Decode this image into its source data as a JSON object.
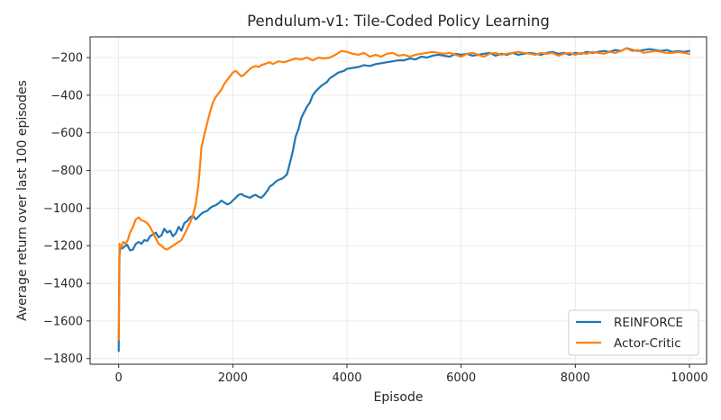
{
  "chart_data": {
    "type": "line",
    "title": "Pendulum-v1: Tile-Coded Policy Learning",
    "xlabel": "Episode",
    "ylabel": "Average return over last 100 episodes",
    "xlim": [
      -500,
      10300
    ],
    "ylim": [
      -1830,
      -90
    ],
    "xticks": [
      0,
      2000,
      4000,
      6000,
      8000,
      10000
    ],
    "yticks": [
      -1800,
      -1600,
      -1400,
      -1200,
      -1000,
      -800,
      -600,
      -400,
      -200
    ],
    "grid": true,
    "legend_position": "lower right",
    "series": [
      {
        "name": "REINFORCE",
        "color": "#1f77b4",
        "points": [
          [
            0,
            -1760
          ],
          [
            8,
            -1450
          ],
          [
            15,
            -1250
          ],
          [
            30,
            -1200
          ],
          [
            60,
            -1215
          ],
          [
            100,
            -1205
          ],
          [
            150,
            -1195
          ],
          [
            200,
            -1225
          ],
          [
            250,
            -1220
          ],
          [
            300,
            -1190
          ],
          [
            350,
            -1180
          ],
          [
            400,
            -1190
          ],
          [
            450,
            -1170
          ],
          [
            500,
            -1175
          ],
          [
            550,
            -1150
          ],
          [
            600,
            -1140
          ],
          [
            650,
            -1130
          ],
          [
            700,
            -1155
          ],
          [
            750,
            -1145
          ],
          [
            800,
            -1110
          ],
          [
            850,
            -1130
          ],
          [
            900,
            -1120
          ],
          [
            950,
            -1150
          ],
          [
            1000,
            -1135
          ],
          [
            1050,
            -1100
          ],
          [
            1100,
            -1120
          ],
          [
            1150,
            -1080
          ],
          [
            1200,
            -1070
          ],
          [
            1250,
            -1050
          ],
          [
            1300,
            -1040
          ],
          [
            1350,
            -1060
          ],
          [
            1400,
            -1045
          ],
          [
            1450,
            -1030
          ],
          [
            1500,
            -1020
          ],
          [
            1550,
            -1015
          ],
          [
            1600,
            -1000
          ],
          [
            1650,
            -990
          ],
          [
            1700,
            -985
          ],
          [
            1750,
            -975
          ],
          [
            1800,
            -960
          ],
          [
            1850,
            -970
          ],
          [
            1900,
            -980
          ],
          [
            1950,
            -975
          ],
          [
            2000,
            -960
          ],
          [
            2050,
            -945
          ],
          [
            2100,
            -930
          ],
          [
            2150,
            -925
          ],
          [
            2200,
            -935
          ],
          [
            2250,
            -940
          ],
          [
            2300,
            -945
          ],
          [
            2350,
            -935
          ],
          [
            2400,
            -930
          ],
          [
            2450,
            -940
          ],
          [
            2500,
            -945
          ],
          [
            2550,
            -930
          ],
          [
            2600,
            -910
          ],
          [
            2650,
            -885
          ],
          [
            2700,
            -875
          ],
          [
            2750,
            -860
          ],
          [
            2800,
            -850
          ],
          [
            2850,
            -845
          ],
          [
            2900,
            -835
          ],
          [
            2950,
            -820
          ],
          [
            3000,
            -760
          ],
          [
            3050,
            -700
          ],
          [
            3100,
            -620
          ],
          [
            3150,
            -580
          ],
          [
            3200,
            -520
          ],
          [
            3250,
            -490
          ],
          [
            3300,
            -460
          ],
          [
            3350,
            -440
          ],
          [
            3400,
            -400
          ],
          [
            3450,
            -380
          ],
          [
            3500,
            -365
          ],
          [
            3550,
            -350
          ],
          [
            3600,
            -340
          ],
          [
            3650,
            -330
          ],
          [
            3700,
            -310
          ],
          [
            3750,
            -300
          ],
          [
            3800,
            -290
          ],
          [
            3850,
            -280
          ],
          [
            3900,
            -275
          ],
          [
            3950,
            -270
          ],
          [
            4000,
            -260
          ],
          [
            4100,
            -255
          ],
          [
            4200,
            -250
          ],
          [
            4300,
            -240
          ],
          [
            4400,
            -245
          ],
          [
            4500,
            -235
          ],
          [
            4600,
            -230
          ],
          [
            4700,
            -225
          ],
          [
            4800,
            -220
          ],
          [
            4900,
            -215
          ],
          [
            5000,
            -215
          ],
          [
            5100,
            -205
          ],
          [
            5200,
            -210
          ],
          [
            5300,
            -195
          ],
          [
            5400,
            -200
          ],
          [
            5500,
            -190
          ],
          [
            5600,
            -185
          ],
          [
            5700,
            -190
          ],
          [
            5800,
            -195
          ],
          [
            5900,
            -180
          ],
          [
            6000,
            -185
          ],
          [
            6100,
            -180
          ],
          [
            6200,
            -190
          ],
          [
            6300,
            -185
          ],
          [
            6400,
            -180
          ],
          [
            6500,
            -175
          ],
          [
            6600,
            -190
          ],
          [
            6700,
            -180
          ],
          [
            6800,
            -185
          ],
          [
            6900,
            -175
          ],
          [
            7000,
            -185
          ],
          [
            7100,
            -180
          ],
          [
            7200,
            -175
          ],
          [
            7300,
            -180
          ],
          [
            7400,
            -185
          ],
          [
            7500,
            -175
          ],
          [
            7600,
            -170
          ],
          [
            7700,
            -180
          ],
          [
            7800,
            -175
          ],
          [
            7900,
            -185
          ],
          [
            8000,
            -175
          ],
          [
            8100,
            -180
          ],
          [
            8200,
            -170
          ],
          [
            8300,
            -175
          ],
          [
            8400,
            -170
          ],
          [
            8500,
            -165
          ],
          [
            8600,
            -170
          ],
          [
            8700,
            -160
          ],
          [
            8800,
            -165
          ],
          [
            8900,
            -150
          ],
          [
            9000,
            -160
          ],
          [
            9100,
            -165
          ],
          [
            9200,
            -160
          ],
          [
            9300,
            -155
          ],
          [
            9400,
            -160
          ],
          [
            9500,
            -165
          ],
          [
            9600,
            -160
          ],
          [
            9700,
            -170
          ],
          [
            9800,
            -165
          ],
          [
            9900,
            -170
          ],
          [
            10000,
            -165
          ]
        ]
      },
      {
        "name": "Actor-Critic",
        "color": "#ff7f0e",
        "points": [
          [
            0,
            -1700
          ],
          [
            8,
            -1400
          ],
          [
            15,
            -1190
          ],
          [
            40,
            -1210
          ],
          [
            80,
            -1180
          ],
          [
            120,
            -1190
          ],
          [
            160,
            -1170
          ],
          [
            200,
            -1130
          ],
          [
            250,
            -1100
          ],
          [
            300,
            -1060
          ],
          [
            350,
            -1050
          ],
          [
            400,
            -1065
          ],
          [
            450,
            -1070
          ],
          [
            500,
            -1080
          ],
          [
            550,
            -1100
          ],
          [
            600,
            -1130
          ],
          [
            650,
            -1160
          ],
          [
            700,
            -1190
          ],
          [
            750,
            -1200
          ],
          [
            800,
            -1215
          ],
          [
            850,
            -1220
          ],
          [
            900,
            -1210
          ],
          [
            950,
            -1200
          ],
          [
            1000,
            -1190
          ],
          [
            1050,
            -1180
          ],
          [
            1100,
            -1170
          ],
          [
            1150,
            -1140
          ],
          [
            1200,
            -1110
          ],
          [
            1250,
            -1080
          ],
          [
            1300,
            -1040
          ],
          [
            1350,
            -980
          ],
          [
            1400,
            -870
          ],
          [
            1430,
            -760
          ],
          [
            1450,
            -680
          ],
          [
            1500,
            -610
          ],
          [
            1550,
            -550
          ],
          [
            1600,
            -490
          ],
          [
            1650,
            -440
          ],
          [
            1700,
            -410
          ],
          [
            1750,
            -390
          ],
          [
            1800,
            -370
          ],
          [
            1850,
            -340
          ],
          [
            1900,
            -320
          ],
          [
            1950,
            -300
          ],
          [
            2000,
            -280
          ],
          [
            2050,
            -270
          ],
          [
            2100,
            -285
          ],
          [
            2150,
            -300
          ],
          [
            2200,
            -290
          ],
          [
            2250,
            -275
          ],
          [
            2300,
            -260
          ],
          [
            2350,
            -250
          ],
          [
            2400,
            -245
          ],
          [
            2450,
            -250
          ],
          [
            2500,
            -240
          ],
          [
            2550,
            -235
          ],
          [
            2600,
            -230
          ],
          [
            2650,
            -225
          ],
          [
            2700,
            -235
          ],
          [
            2800,
            -220
          ],
          [
            2900,
            -225
          ],
          [
            3000,
            -215
          ],
          [
            3100,
            -205
          ],
          [
            3200,
            -210
          ],
          [
            3300,
            -200
          ],
          [
            3400,
            -215
          ],
          [
            3500,
            -200
          ],
          [
            3600,
            -205
          ],
          [
            3700,
            -200
          ],
          [
            3800,
            -185
          ],
          [
            3900,
            -165
          ],
          [
            4000,
            -170
          ],
          [
            4100,
            -180
          ],
          [
            4200,
            -185
          ],
          [
            4300,
            -175
          ],
          [
            4400,
            -195
          ],
          [
            4500,
            -185
          ],
          [
            4600,
            -195
          ],
          [
            4700,
            -180
          ],
          [
            4800,
            -175
          ],
          [
            4900,
            -190
          ],
          [
            5000,
            -185
          ],
          [
            5100,
            -195
          ],
          [
            5200,
            -185
          ],
          [
            5300,
            -180
          ],
          [
            5400,
            -175
          ],
          [
            5500,
            -170
          ],
          [
            5600,
            -175
          ],
          [
            5700,
            -180
          ],
          [
            5800,
            -175
          ],
          [
            5900,
            -185
          ],
          [
            6000,
            -195
          ],
          [
            6100,
            -180
          ],
          [
            6200,
            -175
          ],
          [
            6300,
            -185
          ],
          [
            6400,
            -195
          ],
          [
            6500,
            -180
          ],
          [
            6600,
            -175
          ],
          [
            6700,
            -185
          ],
          [
            6800,
            -180
          ],
          [
            6900,
            -175
          ],
          [
            7000,
            -170
          ],
          [
            7100,
            -175
          ],
          [
            7200,
            -180
          ],
          [
            7300,
            -185
          ],
          [
            7400,
            -175
          ],
          [
            7500,
            -180
          ],
          [
            7600,
            -175
          ],
          [
            7700,
            -190
          ],
          [
            7800,
            -180
          ],
          [
            7900,
            -175
          ],
          [
            8000,
            -185
          ],
          [
            8100,
            -175
          ],
          [
            8200,
            -180
          ],
          [
            8300,
            -170
          ],
          [
            8400,
            -175
          ],
          [
            8500,
            -180
          ],
          [
            8600,
            -170
          ],
          [
            8700,
            -175
          ],
          [
            8800,
            -165
          ],
          [
            8900,
            -150
          ],
          [
            9000,
            -165
          ],
          [
            9100,
            -160
          ],
          [
            9200,
            -175
          ],
          [
            9300,
            -170
          ],
          [
            9400,
            -165
          ],
          [
            9500,
            -170
          ],
          [
            9600,
            -175
          ],
          [
            9700,
            -175
          ],
          [
            9800,
            -170
          ],
          [
            9900,
            -175
          ],
          [
            10000,
            -180
          ]
        ]
      }
    ]
  }
}
